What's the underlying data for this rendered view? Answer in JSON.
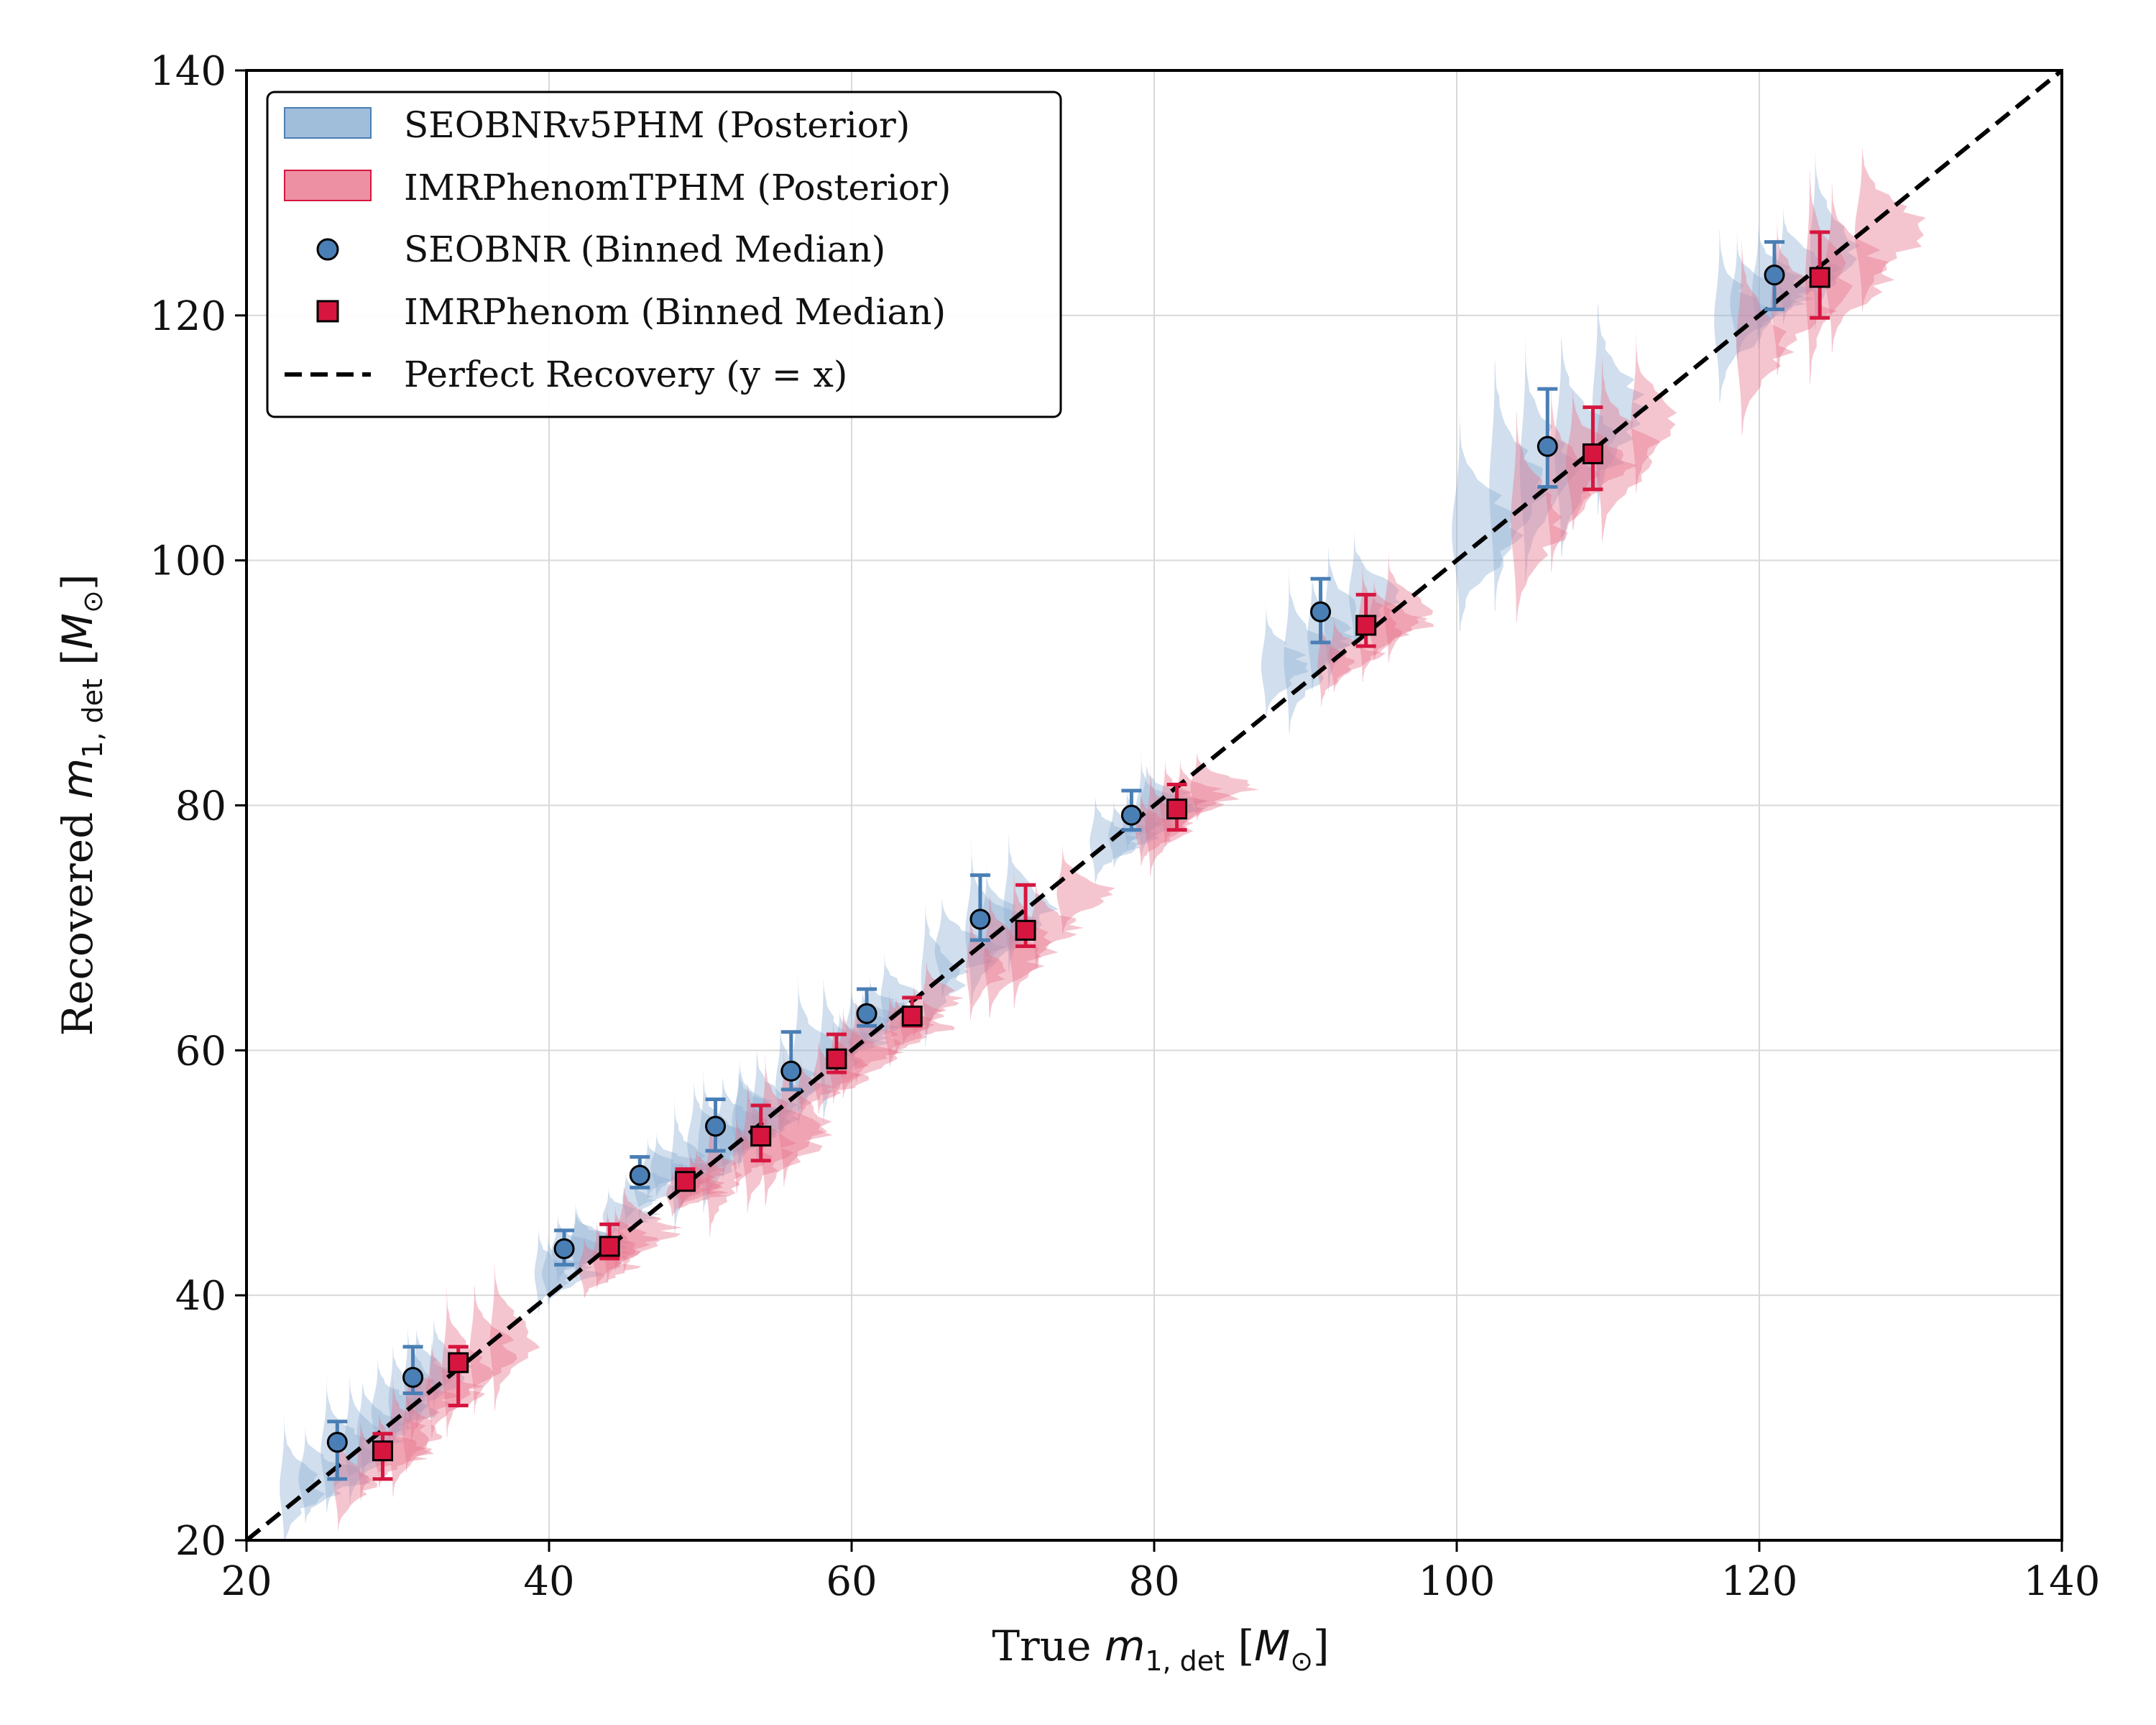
{
  "chart_data": {
    "type": "scatter",
    "xlabel": "True m1,det [M⊙]",
    "ylabel": "Recovered m1,det [M⊙]",
    "xlim": [
      20,
      140
    ],
    "ylim": [
      20,
      140
    ],
    "xticks": [
      "20",
      "40",
      "60",
      "80",
      "100",
      "120",
      "140"
    ],
    "yticks": [
      "20",
      "40",
      "60",
      "80",
      "100",
      "120",
      "140"
    ],
    "grid": true,
    "legend_position": "top-left",
    "legend": {
      "seobnr_posterior": "SEOBNRv5PHM (Posterior)",
      "imr_posterior": "IMRPhenomTPHM (Posterior)",
      "seobnr_median": "SEOBNR (Binned Median)",
      "imr_median": "IMRPhenom (Binned Median)",
      "perfect": "Perfect Recovery (y = x)"
    },
    "colors": {
      "seobnr": "#4a7fb5",
      "seobnr_fill": "#8fb1d3",
      "imr": "#d6163f",
      "imr_fill": "#e8748c"
    },
    "series": [
      {
        "name": "SEOBNR (Binned Median)",
        "marker": "circle",
        "points": [
          {
            "x": 26,
            "y": 28,
            "lo": 25,
            "hi": 29.7
          },
          {
            "x": 31,
            "y": 33.3,
            "lo": 32,
            "hi": 35.8
          },
          {
            "x": 41,
            "y": 43.8,
            "lo": 42.5,
            "hi": 45.3
          },
          {
            "x": 46,
            "y": 49.8,
            "lo": 48.8,
            "hi": 51.3
          },
          {
            "x": 51,
            "y": 53.8,
            "lo": 51.8,
            "hi": 56
          },
          {
            "x": 56,
            "y": 58.3,
            "lo": 56.8,
            "hi": 61.5
          },
          {
            "x": 61,
            "y": 63,
            "lo": 62,
            "hi": 65
          },
          {
            "x": 68.5,
            "y": 70.7,
            "lo": 69,
            "hi": 74.3
          },
          {
            "x": 78.5,
            "y": 79.2,
            "lo": 78,
            "hi": 81.2
          },
          {
            "x": 91,
            "y": 95.8,
            "lo": 93.3,
            "hi": 98.5
          },
          {
            "x": 106,
            "y": 109.3,
            "lo": 106,
            "hi": 114
          },
          {
            "x": 121,
            "y": 123.3,
            "lo": 120.5,
            "hi": 126
          }
        ]
      },
      {
        "name": "IMRPhenom (Binned Median)",
        "marker": "square",
        "points": [
          {
            "x": 29,
            "y": 27.3,
            "lo": 25,
            "hi": 28.7
          },
          {
            "x": 34,
            "y": 34.5,
            "lo": 31,
            "hi": 35.8
          },
          {
            "x": 44,
            "y": 44,
            "lo": 43,
            "hi": 45.8
          },
          {
            "x": 49,
            "y": 49.3,
            "lo": 48.7,
            "hi": 50.3
          },
          {
            "x": 54,
            "y": 53,
            "lo": 51,
            "hi": 55.5
          },
          {
            "x": 59,
            "y": 59.3,
            "lo": 58.2,
            "hi": 61.3
          },
          {
            "x": 64,
            "y": 62.8,
            "lo": 62,
            "hi": 64.3
          },
          {
            "x": 71.5,
            "y": 69.8,
            "lo": 68.5,
            "hi": 73.5
          },
          {
            "x": 81.5,
            "y": 79.7,
            "lo": 78,
            "hi": 81.7
          },
          {
            "x": 94,
            "y": 94.7,
            "lo": 93,
            "hi": 97.2
          },
          {
            "x": 109,
            "y": 108.7,
            "lo": 105.8,
            "hi": 112.5
          },
          {
            "x": 124,
            "y": 123.1,
            "lo": 119.8,
            "hi": 126.8
          }
        ]
      }
    ]
  }
}
